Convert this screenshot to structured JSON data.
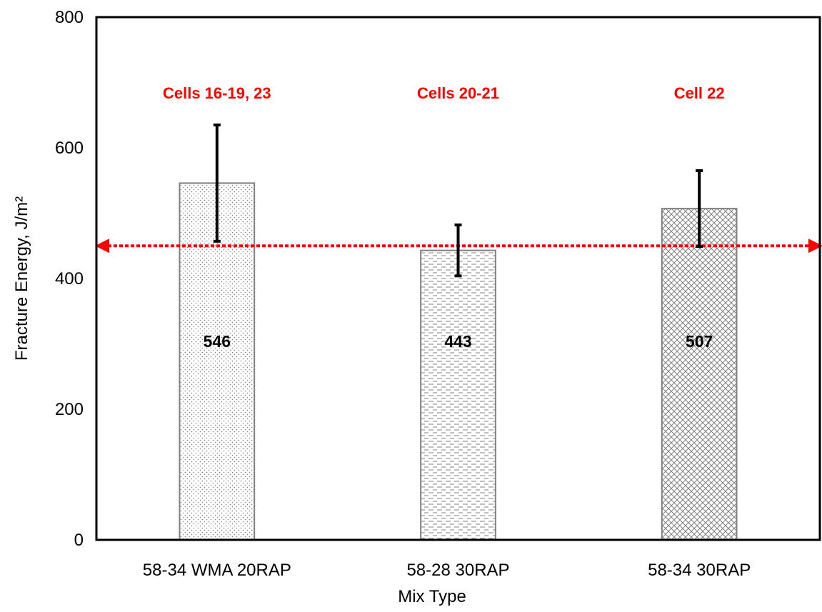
{
  "chart_data": {
    "type": "bar",
    "x_label": "Mix Type",
    "y_label": "Fracture Energy, J/m²",
    "categories": [
      "58-34 WMA 20RAP",
      "58-28 30RAP",
      "58-34 30RAP"
    ],
    "values": [
      546,
      443,
      507
    ],
    "errors": [
      89,
      39,
      58
    ],
    "annotations": [
      "Cells 16-19, 23",
      "Cells 20-21",
      "Cell 22"
    ],
    "annotation_color": "#ff0000",
    "reference_line": 450,
    "reference_color": "#ff0000",
    "color": "#808080",
    "ylim": [
      0,
      800
    ],
    "yticks": [
      0,
      200,
      400,
      600,
      800
    ],
    "grid": false
  }
}
